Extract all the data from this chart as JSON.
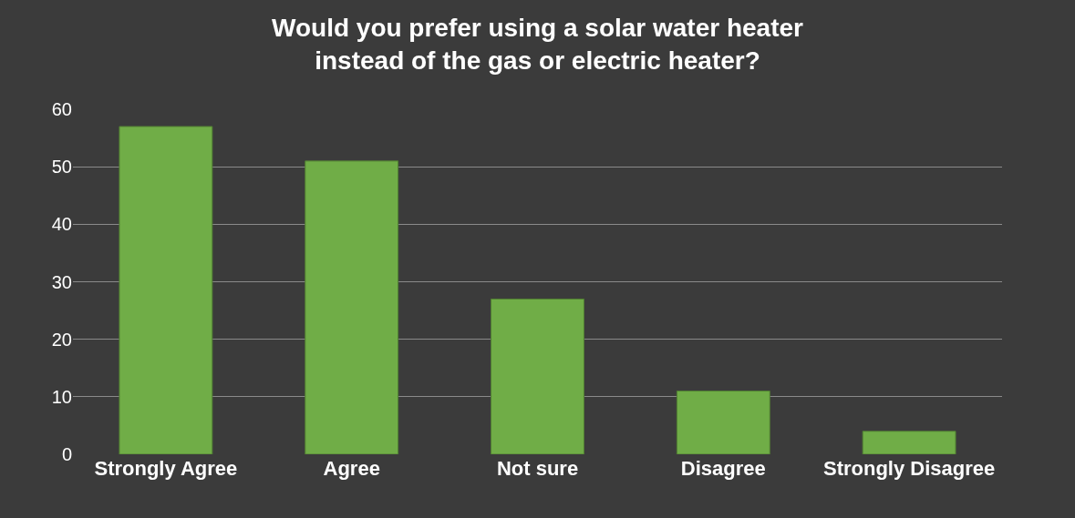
{
  "chart_data": {
    "type": "bar",
    "title": "Would you prefer using a solar water heater\ninstead of the gas or electric heater?",
    "categories": [
      "Strongly Agree",
      "Agree",
      "Not sure",
      "Disagree",
      "Strongly Disagree"
    ],
    "values": [
      57,
      51,
      27,
      11,
      4
    ],
    "color": "#70ad47",
    "ylim": [
      0,
      60
    ],
    "yticks": [
      0,
      10,
      20,
      30,
      40,
      50,
      60
    ],
    "grid": true
  }
}
